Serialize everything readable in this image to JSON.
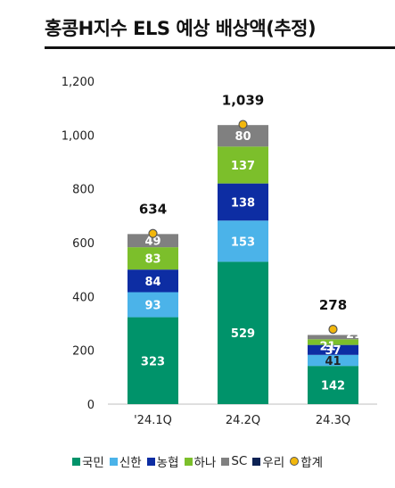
{
  "title": "홍콩H지수 ELS 예상 배상액(추정)",
  "chart_data": {
    "type": "bar",
    "stacked": true,
    "categories": [
      "'24.1Q",
      "24.2Q",
      "24.3Q"
    ],
    "series": [
      {
        "name": "국민",
        "color": "#00936a",
        "values": [
          323,
          529,
          142
        ]
      },
      {
        "name": "신한",
        "color": "#4bb3e9",
        "values": [
          93,
          153,
          41
        ]
      },
      {
        "name": "농협",
        "color": "#0d2da3",
        "values": [
          84,
          138,
          37
        ]
      },
      {
        "name": "하나",
        "color": "#7cbf2b",
        "values": [
          83,
          137,
          21
        ]
      },
      {
        "name": "SC",
        "color": "#808080",
        "values": [
          49,
          80,
          16
        ]
      }
    ],
    "segment_labels": [
      [
        "323",
        "529",
        "142"
      ],
      [
        "93",
        "153",
        "41"
      ],
      [
        "84",
        "138",
        "37"
      ],
      [
        "83",
        "137",
        "21"
      ],
      [
        "49",
        "80",
        ""
      ]
    ],
    "totals": {
      "name": "합계",
      "values": [
        634,
        1039,
        278
      ]
    },
    "yticks": [
      "0",
      "200",
      "400",
      "600",
      "800",
      "1,000",
      "1,200"
    ],
    "ylim": [
      0,
      1200
    ],
    "legend": [
      {
        "name": "국민",
        "color": "#00936a",
        "kind": "square"
      },
      {
        "name": "신한",
        "color": "#4bb3e9",
        "kind": "square"
      },
      {
        "name": "농협",
        "color": "#0d2da3",
        "kind": "square"
      },
      {
        "name": "하나",
        "color": "#7cbf2b",
        "kind": "square"
      },
      {
        "name": "SC",
        "color": "#808080",
        "kind": "square"
      },
      {
        "name": "우리",
        "color": "#0d2254",
        "kind": "square"
      },
      {
        "name": "합계",
        "color": "#f2b70c",
        "kind": "dot"
      }
    ],
    "legend_position": "bottom",
    "grid": false
  }
}
